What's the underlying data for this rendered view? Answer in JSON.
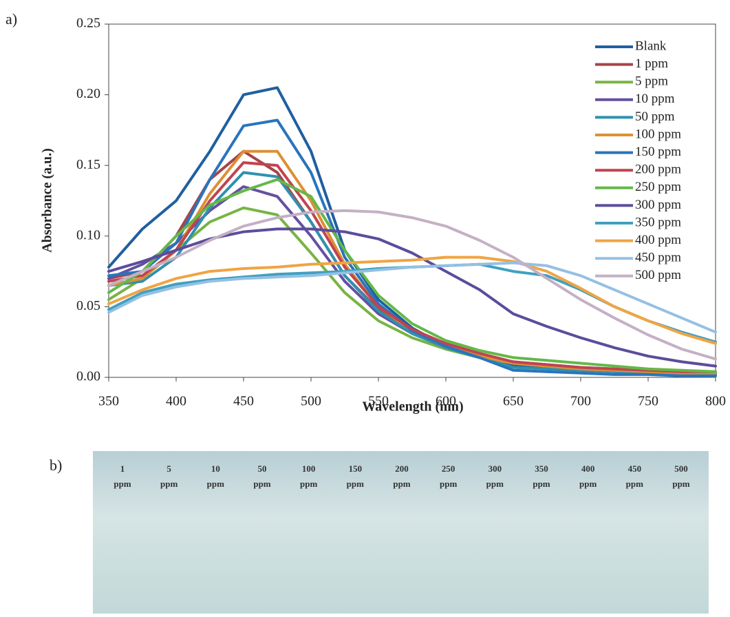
{
  "chart_data": {
    "type": "line",
    "xlabel": "Wavelength (nm)",
    "ylabel": "Absorbance (a.u.)",
    "x": [
      350,
      375,
      400,
      425,
      450,
      475,
      500,
      525,
      550,
      575,
      600,
      625,
      650,
      675,
      700,
      725,
      750,
      775,
      800
    ],
    "xlim": [
      350,
      800
    ],
    "xticks": [
      350,
      400,
      450,
      500,
      550,
      600,
      650,
      700,
      750,
      800
    ],
    "ylim": [
      0,
      0.25
    ],
    "yticks": [
      {
        "value": 0,
        "label": "0.00"
      },
      {
        "value": 0.05,
        "label": "0.05"
      },
      {
        "value": 0.1,
        "label": "0.10"
      },
      {
        "value": 0.15,
        "label": "0.15"
      },
      {
        "value": 0.2,
        "label": "0.20"
      },
      {
        "value": 0.25,
        "label": "0.25"
      }
    ],
    "legend": "upper right",
    "series": [
      {
        "name": "Blank",
        "color": "#1f5f9f",
        "values": [
          0.078,
          0.105,
          0.125,
          0.16,
          0.2,
          0.205,
          0.16,
          0.09,
          0.055,
          0.035,
          0.022,
          0.015,
          0.008,
          0.006,
          0.005,
          0.004,
          0.003,
          0.002,
          0.002
        ]
      },
      {
        "name": "1 ppm",
        "color": "#a84448",
        "values": [
          0.07,
          0.075,
          0.1,
          0.14,
          0.16,
          0.145,
          0.11,
          0.072,
          0.048,
          0.032,
          0.022,
          0.015,
          0.01,
          0.008,
          0.006,
          0.005,
          0.004,
          0.003,
          0.003
        ]
      },
      {
        "name": "5 ppm",
        "color": "#78b444",
        "values": [
          0.055,
          0.07,
          0.09,
          0.11,
          0.12,
          0.115,
          0.088,
          0.06,
          0.04,
          0.028,
          0.02,
          0.014,
          0.01,
          0.008,
          0.006,
          0.005,
          0.004,
          0.003,
          0.003
        ]
      },
      {
        "name": "10 ppm",
        "color": "#6450a0",
        "values": [
          0.07,
          0.08,
          0.095,
          0.118,
          0.135,
          0.128,
          0.1,
          0.068,
          0.045,
          0.031,
          0.022,
          0.016,
          0.011,
          0.009,
          0.007,
          0.006,
          0.005,
          0.004,
          0.004
        ]
      },
      {
        "name": "50 ppm",
        "color": "#3090b0",
        "values": [
          0.065,
          0.068,
          0.085,
          0.12,
          0.145,
          0.142,
          0.11,
          0.072,
          0.047,
          0.031,
          0.021,
          0.014,
          0.007,
          0.006,
          0.005,
          0.004,
          0.003,
          0.003,
          0.002
        ]
      },
      {
        "name": "100 ppm",
        "color": "#dc9034",
        "values": [
          0.065,
          0.07,
          0.09,
          0.13,
          0.16,
          0.16,
          0.125,
          0.08,
          0.05,
          0.033,
          0.022,
          0.015,
          0.01,
          0.008,
          0.006,
          0.005,
          0.004,
          0.003,
          0.003
        ]
      },
      {
        "name": "150 ppm",
        "color": "#2a74bc",
        "values": [
          0.072,
          0.075,
          0.095,
          0.14,
          0.178,
          0.182,
          0.145,
          0.085,
          0.052,
          0.033,
          0.022,
          0.014,
          0.005,
          0.004,
          0.003,
          0.002,
          0.002,
          0.001,
          0.001
        ]
      },
      {
        "name": "200 ppm",
        "color": "#c04450",
        "values": [
          0.068,
          0.072,
          0.09,
          0.125,
          0.152,
          0.15,
          0.118,
          0.078,
          0.05,
          0.034,
          0.024,
          0.017,
          0.011,
          0.009,
          0.007,
          0.006,
          0.005,
          0.004,
          0.004
        ]
      },
      {
        "name": "250 ppm",
        "color": "#64b848",
        "values": [
          0.06,
          0.075,
          0.1,
          0.122,
          0.132,
          0.14,
          0.128,
          0.09,
          0.058,
          0.038,
          0.026,
          0.019,
          0.014,
          0.012,
          0.01,
          0.008,
          0.006,
          0.005,
          0.004
        ]
      },
      {
        "name": "300 ppm",
        "color": "#5c4c9c",
        "values": [
          0.075,
          0.082,
          0.09,
          0.098,
          0.103,
          0.105,
          0.105,
          0.103,
          0.098,
          0.088,
          0.075,
          0.062,
          0.045,
          0.036,
          0.028,
          0.021,
          0.015,
          0.011,
          0.008
        ]
      },
      {
        "name": "350 ppm",
        "color": "#40a0c0",
        "values": [
          0.048,
          0.06,
          0.066,
          0.069,
          0.071,
          0.073,
          0.074,
          0.075,
          0.077,
          0.078,
          0.079,
          0.08,
          0.075,
          0.072,
          0.062,
          0.05,
          0.04,
          0.032,
          0.025
        ]
      },
      {
        "name": "400 ppm",
        "color": "#f0a444",
        "values": [
          0.052,
          0.062,
          0.07,
          0.075,
          0.077,
          0.078,
          0.08,
          0.081,
          0.082,
          0.083,
          0.085,
          0.085,
          0.082,
          0.075,
          0.063,
          0.05,
          0.04,
          0.031,
          0.024
        ]
      },
      {
        "name": "450 ppm",
        "color": "#94c0e4",
        "values": [
          0.046,
          0.058,
          0.064,
          0.068,
          0.07,
          0.071,
          0.072,
          0.074,
          0.076,
          0.078,
          0.079,
          0.08,
          0.081,
          0.079,
          0.072,
          0.062,
          0.052,
          0.042,
          0.032
        ]
      },
      {
        "name": "500 ppm",
        "color": "#c4b0c4",
        "values": [
          0.065,
          0.075,
          0.085,
          0.097,
          0.107,
          0.113,
          0.117,
          0.118,
          0.117,
          0.113,
          0.107,
          0.097,
          0.085,
          0.07,
          0.055,
          0.042,
          0.03,
          0.02,
          0.013
        ]
      }
    ]
  },
  "panel_a": "a)",
  "panel_b": "b)",
  "tubes": [
    "1",
    "5",
    "10",
    "50",
    "100",
    "150",
    "200",
    "250",
    "300",
    "350",
    "400",
    "450",
    "500"
  ],
  "unit": "ppm"
}
